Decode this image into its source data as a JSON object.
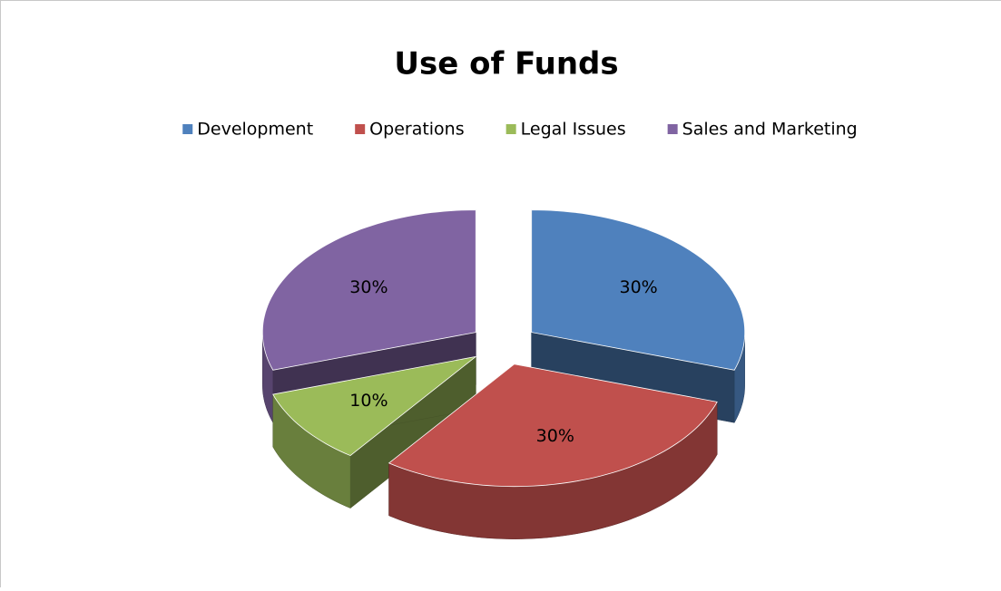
{
  "chart_data": {
    "type": "pie",
    "title": "Use of Funds",
    "categories": [
      "Development",
      "Operations",
      "Legal Issues",
      "Sales and Marketing"
    ],
    "values": [
      30,
      30,
      10,
      30
    ],
    "value_labels": [
      "30%",
      "30%",
      "10%",
      "30%"
    ],
    "colors": [
      "#4f81bd",
      "#c0504d",
      "#9bbb59",
      "#8064a2"
    ],
    "legend": "top",
    "three_d": true,
    "exploded": true
  }
}
